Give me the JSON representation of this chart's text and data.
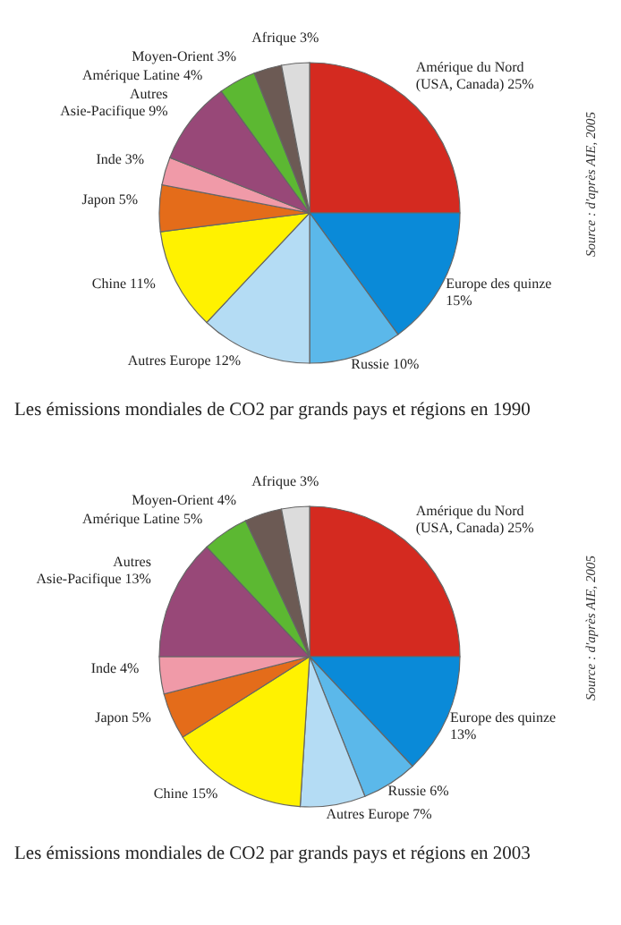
{
  "chart_data": [
    {
      "type": "pie",
      "title": "Les émissions mondiales de CO2 par grands pays et régions en 1990",
      "annotations": [
        "Source : d'après AIE, 2005"
      ],
      "categories": [
        "Amérique du Nord (USA, Canada)",
        "Europe des quinze",
        "Russie",
        "Autres Europe",
        "Chine",
        "Japon",
        "Inde",
        "Autres Asie-Pacifique",
        "Amérique Latine",
        "Moyen-Orient",
        "Afrique"
      ],
      "values": [
        25,
        15,
        10,
        12,
        11,
        5,
        3,
        9,
        4,
        3,
        3
      ],
      "value_labels": [
        "25%",
        "15%",
        "10%",
        "12%",
        "11%",
        "5%",
        "3%",
        "9%",
        "4%",
        "3%",
        "3%"
      ],
      "colors": [
        "#d42a20",
        "#0a8ad8",
        "#5bb8ea",
        "#b4dcf4",
        "#fff200",
        "#e46c1a",
        "#f09aa8",
        "#984878",
        "#5cb832",
        "#6c5a54",
        "#dcdcdc"
      ]
    },
    {
      "type": "pie",
      "title": "Les émissions mondiales de CO2 par grands pays et régions en 2003",
      "annotations": [
        "Source : d'après AIE, 2005"
      ],
      "categories": [
        "Amérique du Nord (USA, Canada)",
        "Europe des quinze",
        "Russie",
        "Autres Europe",
        "Chine",
        "Japon",
        "Inde",
        "Autres Asie-Pacifique",
        "Amérique Latine",
        "Moyen-Orient",
        "Afrique"
      ],
      "values": [
        25,
        13,
        6,
        7,
        15,
        5,
        4,
        13,
        5,
        4,
        3
      ],
      "value_labels": [
        "25%",
        "13%",
        "6%",
        "7%",
        "15%",
        "5%",
        "4%",
        "13%",
        "5%",
        "4%",
        "3%"
      ],
      "colors": [
        "#d42a20",
        "#0a8ad8",
        "#5bb8ea",
        "#b4dcf4",
        "#fff200",
        "#e46c1a",
        "#f09aa8",
        "#984878",
        "#5cb832",
        "#6c5a54",
        "#dcdcdc"
      ]
    }
  ]
}
